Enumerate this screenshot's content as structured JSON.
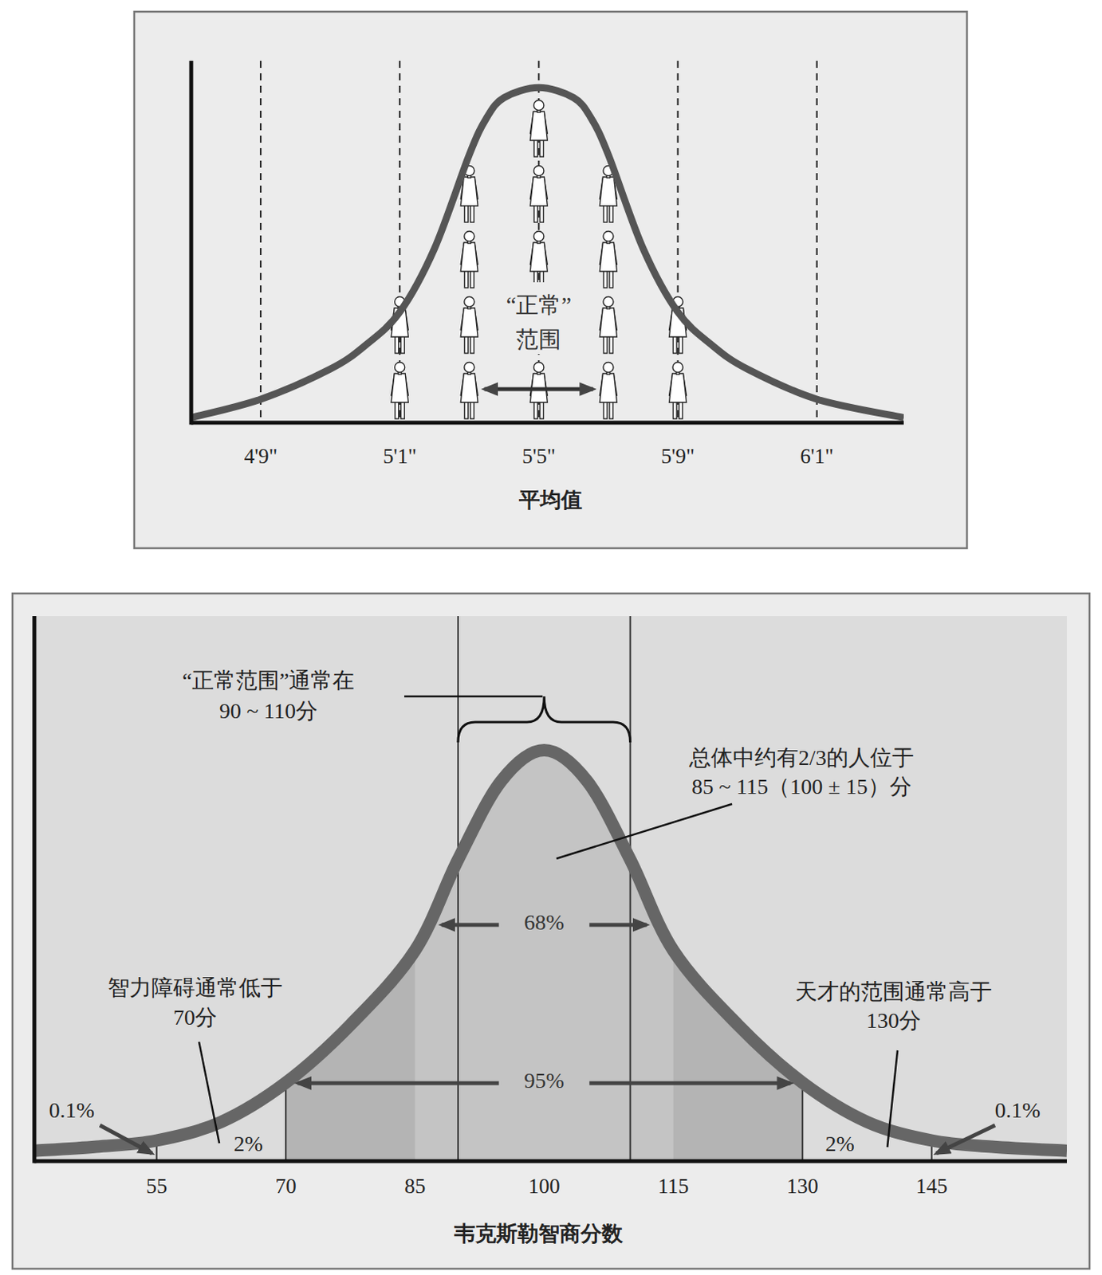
{
  "chart_data": [
    {
      "type": "line",
      "x": [
        55,
        57,
        59,
        60,
        61,
        62,
        63,
        63.5,
        64,
        65,
        66,
        66.5,
        67,
        68,
        69,
        70,
        71,
        73,
        75.5
      ],
      "values": [
        1.5,
        7,
        16,
        23,
        33,
        52,
        80,
        91,
        97,
        100,
        97,
        91,
        80,
        52,
        33,
        23,
        16,
        7,
        1.5
      ],
      "xlim": [
        55,
        75.5
      ],
      "ylim": [
        0,
        108
      ],
      "xticks": [
        {
          "value": 57,
          "label": "4'9\""
        },
        {
          "value": 61,
          "label": "5'1\""
        },
        {
          "value": 65,
          "label": "5'5\""
        },
        {
          "value": 69,
          "label": "5'9\""
        },
        {
          "value": 73,
          "label": "6'1\""
        }
      ],
      "xlabel": "平均值",
      "grid": true,
      "tick_labels": "x",
      "people": {
        "x": [
          61,
          63,
          65,
          67,
          69
        ],
        "counts": [
          2,
          4,
          5,
          4,
          2
        ]
      },
      "annotations": [
        {
          "text": [
            "“正常”",
            "范围"
          ],
          "range": [
            63.3,
            66.7
          ]
        }
      ]
    },
    {
      "type": "line",
      "x": [
        40.8,
        48,
        55,
        62.5,
        70,
        77.5,
        85,
        90,
        95,
        100,
        105,
        110,
        115,
        122.5,
        130,
        137.5,
        145,
        152,
        160.7
      ],
      "values": [
        2.5,
        3.5,
        5,
        9.5,
        19,
        33,
        51,
        73,
        92,
        99.5,
        92,
        73,
        51,
        33,
        19,
        9.5,
        5,
        3.5,
        2.5
      ],
      "xlim": [
        40.8,
        160.7
      ],
      "ylim": [
        0,
        132
      ],
      "xticks": [
        55,
        70,
        85,
        100,
        115,
        130,
        145
      ],
      "xlabel": "韦克斯勒智商分数",
      "grid": false,
      "tick_labels": "x",
      "normal_range": [
        90,
        110
      ],
      "bands": {
        "ranges": [
          [
            85,
            115
          ],
          [
            70,
            130
          ]
        ],
        "values": [
          68,
          95
        ],
        "value_labels": [
          "68%",
          "95%"
        ]
      },
      "tails": {
        "ranges": [
          [
            55,
            70
          ],
          [
            130,
            145
          ]
        ],
        "values": [
          2,
          2
        ],
        "value_labels": [
          "2%",
          "2%"
        ]
      },
      "extreme_tails": {
        "x": [
          55,
          145
        ],
        "values": [
          0.1,
          0.1
        ],
        "value_labels": [
          "0.1%",
          "0.1%"
        ]
      },
      "annotations": [
        {
          "text": [
            "“正常范围”通常在",
            "90 ~ 110分"
          ]
        },
        {
          "text": [
            "总体中约有2/3的人位于",
            "85 ~ 115（100 ± 15）分"
          ]
        },
        {
          "text": [
            "智力障碍通常低于",
            "70分"
          ]
        },
        {
          "text": [
            "天才的范围通常高于",
            "130分"
          ]
        }
      ]
    }
  ]
}
